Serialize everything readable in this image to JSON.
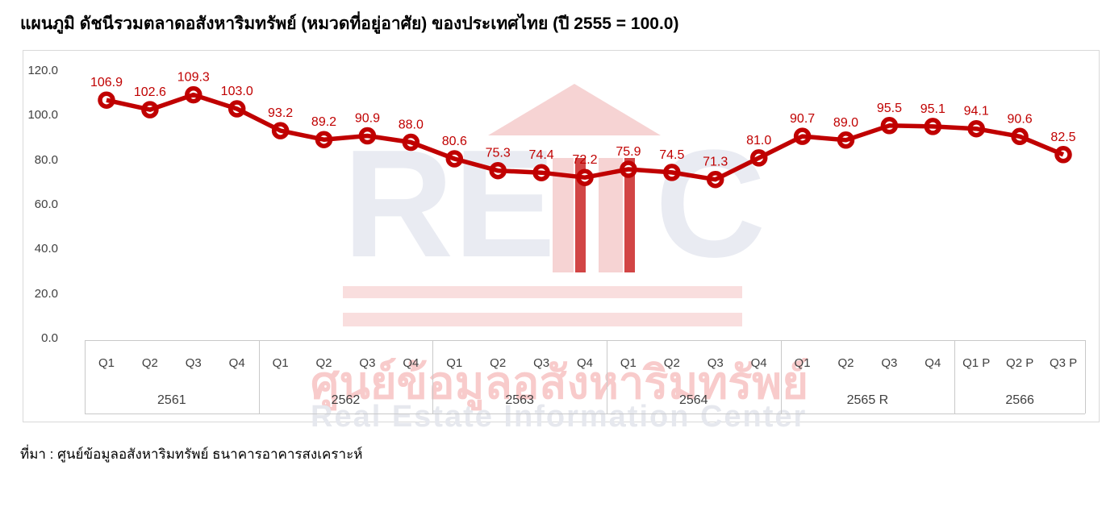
{
  "title": "แผนภูมิ ดัชนีรวมตลาดอสังหาริมทรัพย์ (หมวดที่อยู่อาศัย) ของประเทศไทย (ปี 2555 = 100.0)",
  "source_note": "ที่มา : ศูนย์ข้อมูลอสังหาริมทรัพย์ ธนาคารอาคารสงเคราะห์",
  "watermark": {
    "letter_r": "R",
    "letter_e": "E",
    "letter_c": "C",
    "thai_text": "ศูนย์ข้อมูลอสังหาริมทรัพย์",
    "english_text": "Real Estate Information Center"
  },
  "colors": {
    "line": "#C00000",
    "data_label": "#C00000",
    "axis_text": "#404040",
    "outer_border": "#D9D9D9",
    "table_line": "#C9C9C9",
    "watermark_pink": "#F6D3D3",
    "watermark_red": "#D24545",
    "watermark_gray": "#E9EBF2"
  },
  "chart_data": {
    "type": "line",
    "title": "แผนภูมิ ดัชนีรวมตลาดอสังหาริมทรัพย์ (หมวดที่อยู่อาศัย) ของประเทศไทย (ปี 2555 = 100.0)",
    "ylim": [
      0,
      120
    ],
    "ytick_step": 20,
    "ytick_labels": [
      "0.0",
      "20.0",
      "40.0",
      "60.0",
      "80.0",
      "100.0",
      "120.0"
    ],
    "grid": false,
    "legend": false,
    "marker": "circle",
    "data_labels_shown": true,
    "groups": [
      {
        "year": "2561",
        "quarters": [
          "Q1",
          "Q2",
          "Q3",
          "Q4"
        ],
        "values": [
          106.9,
          102.6,
          109.3,
          103.0
        ]
      },
      {
        "year": "2562",
        "quarters": [
          "Q1",
          "Q2",
          "Q3",
          "Q4"
        ],
        "values": [
          93.2,
          89.2,
          90.9,
          88.0
        ]
      },
      {
        "year": "2563",
        "quarters": [
          "Q1",
          "Q2",
          "Q3",
          "Q4"
        ],
        "values": [
          80.6,
          75.3,
          74.4,
          72.2
        ]
      },
      {
        "year": "2564",
        "quarters": [
          "Q1",
          "Q2",
          "Q3",
          "Q4"
        ],
        "values": [
          75.9,
          74.5,
          71.3,
          81.0
        ]
      },
      {
        "year": "2565 R",
        "quarters": [
          "Q1",
          "Q2",
          "Q3",
          "Q4"
        ],
        "values": [
          90.7,
          89.0,
          95.5,
          95.1
        ]
      },
      {
        "year": "2566",
        "quarters": [
          "Q1 P",
          "Q2 P",
          "Q3 P"
        ],
        "values": [
          94.1,
          90.6,
          82.5
        ]
      }
    ]
  }
}
